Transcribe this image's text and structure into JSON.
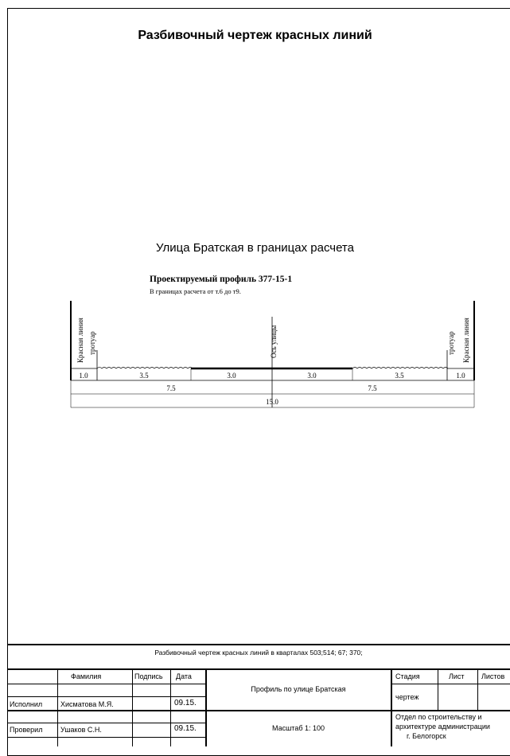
{
  "header": {
    "title": "Разбивочный чертеж красных линий"
  },
  "street": {
    "title": "Улица Братская в границах расчета"
  },
  "profile": {
    "heading": "Проектируемый профиль  377-15-1",
    "range": "В границах расчета от т.6 до т9.",
    "labels": {
      "red_line_left": "Красная линия",
      "sidewalk_left": "тротуар",
      "axis": "Ось улицы",
      "sidewalk_right": "тротуар",
      "red_line_right": "Красная линия"
    },
    "row1": [
      "1.0",
      "3.5",
      "3.0",
      "3.0",
      "3.5",
      "1.0"
    ],
    "row2": [
      "7.5",
      "7.5"
    ],
    "row3": [
      "15.0"
    ]
  },
  "title_block": {
    "drawing_title": "Разбивочный чертеж красных линий в кварталах 503;514; 67; 370;",
    "headers": {
      "surname": "Фамилия",
      "signature": "Подпись",
      "date": "Дата"
    },
    "rows": [
      {
        "role": "Исполнил",
        "name": "Хисматова М.Я.",
        "date": "09.15."
      },
      {
        "role": "Проверил",
        "name": "Ушаков С.Н.",
        "date": "09.15."
      }
    ],
    "sheet_name": "Профиль по улице Братская",
    "scale": "Масштаб  1: 100",
    "stage_header": "Стадия",
    "sheet_header": "Лист",
    "sheets_header": "Листов",
    "stage_value": "чертеж",
    "organization": [
      "Отдел по строительству и",
      "архитектуре администрации",
      "г. Белогорск"
    ]
  }
}
